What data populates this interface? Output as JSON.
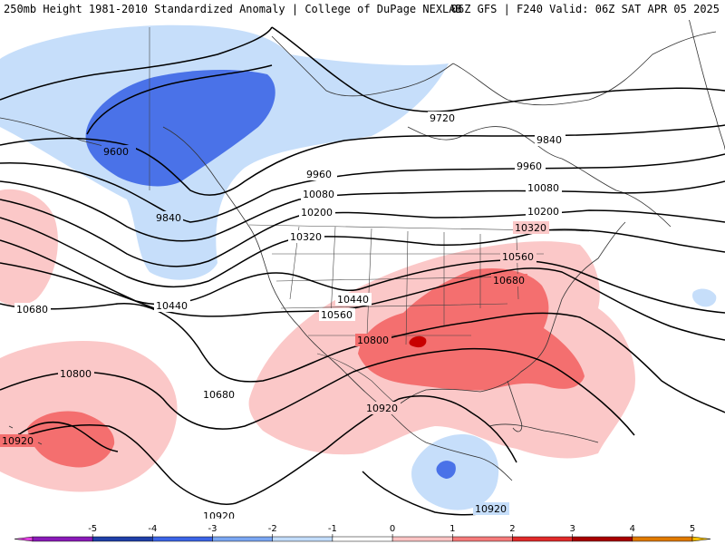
{
  "header": {
    "left_title": "250mb Height 1981-2010 Standardized Anomaly | College of DuPage NEXLAB",
    "right_title": "06Z GFS | F240 Valid: 06Z SAT APR 05 2025"
  },
  "contour_labels": [
    {
      "id": "c9600",
      "text": "9600"
    },
    {
      "id": "c9720",
      "text": "9720"
    },
    {
      "id": "c9840a",
      "text": "9840"
    },
    {
      "id": "c9840b",
      "text": "9840"
    },
    {
      "id": "c9960a",
      "text": "9960"
    },
    {
      "id": "c9960b",
      "text": "9960"
    },
    {
      "id": "c10080a",
      "text": "10080"
    },
    {
      "id": "c10080b",
      "text": "10080"
    },
    {
      "id": "c10200a",
      "text": "10200"
    },
    {
      "id": "c10200b",
      "text": "10200"
    },
    {
      "id": "c10320a",
      "text": "10320"
    },
    {
      "id": "c10320b",
      "text": "10320"
    },
    {
      "id": "c10440a",
      "text": "10440"
    },
    {
      "id": "c10440b",
      "text": "10440"
    },
    {
      "id": "c10560a",
      "text": "10560"
    },
    {
      "id": "c10560b",
      "text": "10560"
    },
    {
      "id": "c10680a",
      "text": "10680"
    },
    {
      "id": "c10680b",
      "text": "10680"
    },
    {
      "id": "c10680c",
      "text": "10680"
    },
    {
      "id": "c10800a",
      "text": "10800"
    },
    {
      "id": "c10800b",
      "text": "10800"
    },
    {
      "id": "c10920a",
      "text": "10920"
    },
    {
      "id": "c10920b",
      "text": "10920"
    },
    {
      "id": "c10920c",
      "text": "10920"
    },
    {
      "id": "c10920d",
      "text": "10920"
    }
  ],
  "colorbar": {
    "ticks": [
      "-5",
      "-4",
      "-3",
      "-2",
      "-1",
      "0",
      "1",
      "2",
      "3",
      "4",
      "5"
    ],
    "colors": [
      "#e040e0",
      "#8a1ab8",
      "#1f3fa8",
      "#3c64e6",
      "#7aa6f2",
      "#c2dcfa",
      "#ffffff",
      "#fbc4c4",
      "#f57a7a",
      "#e02a2a",
      "#a80000",
      "#e07a00",
      "#f5c000"
    ]
  },
  "anomaly_colors": {
    "neg1": "#c6defa",
    "neg2": "#4a72e8",
    "pos1": "#fbc8c8",
    "pos2": "#f46f6f",
    "pos3": "#c80000"
  }
}
